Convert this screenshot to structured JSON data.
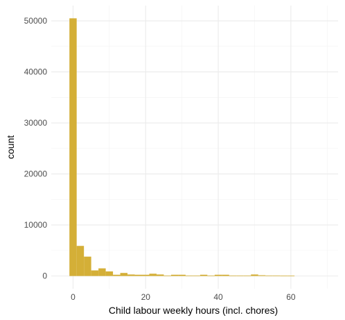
{
  "chart_data": {
    "type": "bar",
    "subtype": "histogram",
    "xlabel": "Child labour weekly hours (incl. chores)",
    "ylabel": "count",
    "xlim": [
      -6,
      73
    ],
    "ylim": [
      -2500,
      53000
    ],
    "x_ticks": [
      0,
      20,
      40,
      60
    ],
    "y_ticks": [
      0,
      10000,
      20000,
      30000,
      40000,
      50000
    ],
    "x_tick_labels": [
      "0",
      "20",
      "40",
      "60"
    ],
    "y_tick_labels": [
      "0",
      "10000",
      "20000",
      "30000",
      "40000",
      "50000"
    ],
    "grid": true,
    "bar_color": "#D4AF37",
    "bins": [
      {
        "x0": -1,
        "x1": 1,
        "count": 50500
      },
      {
        "x0": 1,
        "x1": 3,
        "count": 5900
      },
      {
        "x0": 3,
        "x1": 5,
        "count": 3800
      },
      {
        "x0": 5,
        "x1": 7,
        "count": 1100
      },
      {
        "x0": 7,
        "x1": 9,
        "count": 1500
      },
      {
        "x0": 9,
        "x1": 11,
        "count": 900
      },
      {
        "x0": 11,
        "x1": 13,
        "count": 250
      },
      {
        "x0": 13,
        "x1": 15,
        "count": 600
      },
      {
        "x0": 15,
        "x1": 17,
        "count": 300
      },
      {
        "x0": 17,
        "x1": 19,
        "count": 250
      },
      {
        "x0": 19,
        "x1": 21,
        "count": 250
      },
      {
        "x0": 21,
        "x1": 23,
        "count": 450
      },
      {
        "x0": 23,
        "x1": 25,
        "count": 300
      },
      {
        "x0": 25,
        "x1": 27,
        "count": 100
      },
      {
        "x0": 27,
        "x1": 29,
        "count": 250
      },
      {
        "x0": 29,
        "x1": 31,
        "count": 250
      },
      {
        "x0": 31,
        "x1": 33,
        "count": 100
      },
      {
        "x0": 33,
        "x1": 35,
        "count": 100
      },
      {
        "x0": 35,
        "x1": 37,
        "count": 250
      },
      {
        "x0": 37,
        "x1": 39,
        "count": 100
      },
      {
        "x0": 39,
        "x1": 41,
        "count": 250
      },
      {
        "x0": 41,
        "x1": 43,
        "count": 250
      },
      {
        "x0": 43,
        "x1": 45,
        "count": 100
      },
      {
        "x0": 45,
        "x1": 47,
        "count": 100
      },
      {
        "x0": 47,
        "x1": 49,
        "count": 100
      },
      {
        "x0": 49,
        "x1": 51,
        "count": 300
      },
      {
        "x0": 51,
        "x1": 53,
        "count": 150
      },
      {
        "x0": 53,
        "x1": 55,
        "count": 100
      },
      {
        "x0": 55,
        "x1": 57,
        "count": 100
      },
      {
        "x0": 57,
        "x1": 59,
        "count": 80
      },
      {
        "x0": 59,
        "x1": 61,
        "count": 80
      }
    ]
  }
}
